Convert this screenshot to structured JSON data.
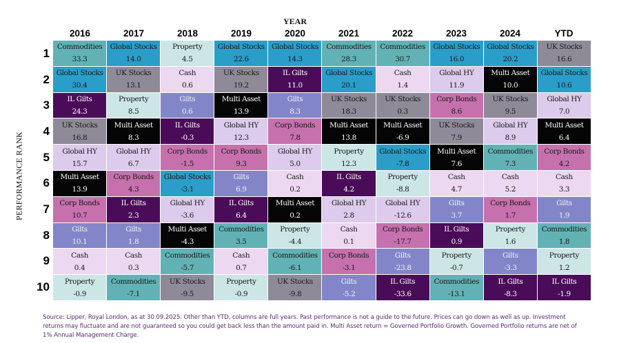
{
  "chart_data": {
    "type": "table",
    "title": "",
    "xlabel": "YEAR",
    "ylabel": "PERFORMANCE RANK",
    "columns": [
      "2016",
      "2017",
      "2018",
      "2019",
      "2020",
      "2021",
      "2022",
      "2023",
      "2024",
      "YTD"
    ],
    "ranks": [
      "1",
      "2",
      "3",
      "4",
      "5",
      "6",
      "7",
      "8",
      "9",
      "10"
    ],
    "asset_colors": {
      "Commodities": {
        "bg": "#62b2b5",
        "fg": "#1a1a1a"
      },
      "Global Stocks": {
        "bg": "#2b9dc9",
        "fg": "#1a1a1a"
      },
      "Property": {
        "bg": "#cce6e6",
        "fg": "#1a1a1a"
      },
      "UK Stocks": {
        "bg": "#8e8a97",
        "fg": "#1a1a1a"
      },
      "Cash": {
        "bg": "#ecd8f1",
        "fg": "#1a1a1a"
      },
      "IL Gilts": {
        "bg": "#4a0c58",
        "fg": "#ffffff"
      },
      "Gilts": {
        "bg": "#8286c9",
        "fg": "#f2f2f2"
      },
      "Multi Asset": {
        "bg": "#050505",
        "fg": "#ffffff"
      },
      "Global HY": {
        "bg": "#dccbec",
        "fg": "#1a1a1a"
      },
      "Corp Bonds": {
        "bg": "#c671ad",
        "fg": "#1a1a1a"
      }
    },
    "rows": [
      [
        [
          "Commodities",
          "33.3"
        ],
        [
          "Global Stocks",
          "14.0"
        ],
        [
          "Property",
          "4.5"
        ],
        [
          "Global Stocks",
          "22.6"
        ],
        [
          "Global Stocks",
          "14.3"
        ],
        [
          "Commodities",
          "28.3"
        ],
        [
          "Commodities",
          "30.7"
        ],
        [
          "Global Stocks",
          "16.0"
        ],
        [
          "Global Stocks",
          "20.2"
        ],
        [
          "UK Stocks",
          "16.6"
        ]
      ],
      [
        [
          "Global Stocks",
          "30.4"
        ],
        [
          "UK Stocks",
          "13.1"
        ],
        [
          "Cash",
          "0.6"
        ],
        [
          "UK Stocks",
          "19.2"
        ],
        [
          "IL Gilts",
          "11.0"
        ],
        [
          "Global Stocks",
          "20.1"
        ],
        [
          "Cash",
          "1.4"
        ],
        [
          "Global HY",
          "11.9"
        ],
        [
          "Multi Asset",
          "10.0"
        ],
        [
          "Global Stocks",
          "10.6"
        ]
      ],
      [
        [
          "IL Gilts",
          "24.3"
        ],
        [
          "Property",
          "8.5"
        ],
        [
          "Gilts",
          "0.6"
        ],
        [
          "Multi Asset",
          "13.9"
        ],
        [
          "Gilts",
          "8.3"
        ],
        [
          "UK Stocks",
          "18.3"
        ],
        [
          "UK Stocks",
          "0.3"
        ],
        [
          "Corp Bonds",
          "8.6"
        ],
        [
          "UK Stocks",
          "9.5"
        ],
        [
          "Global HY",
          "7.0"
        ]
      ],
      [
        [
          "UK Stocks",
          "16.8"
        ],
        [
          "Multi Asset",
          "8.3"
        ],
        [
          "IL Gilts",
          "-0.3"
        ],
        [
          "Global HY",
          "12.3"
        ],
        [
          "Corp Bonds",
          "7.8"
        ],
        [
          "Multi Asset",
          "13.8"
        ],
        [
          "Multi Asset",
          "-6.9"
        ],
        [
          "UK Stocks",
          "7.9"
        ],
        [
          "Global HY",
          "8.9"
        ],
        [
          "Multi Asset",
          "6.4"
        ]
      ],
      [
        [
          "Global HY",
          "15.7"
        ],
        [
          "Global HY",
          "6.7"
        ],
        [
          "Corp Bonds",
          "-1.5"
        ],
        [
          "Corp Bonds",
          "9.3"
        ],
        [
          "Global HY",
          "5.0"
        ],
        [
          "Property",
          "12.3"
        ],
        [
          "Global Stocks",
          "-7.8"
        ],
        [
          "Multi Asset",
          "7.6"
        ],
        [
          "Commodities",
          "7.3"
        ],
        [
          "Corp Bonds",
          "4.2"
        ]
      ],
      [
        [
          "Multi Asset",
          "13.9"
        ],
        [
          "Corp Bonds",
          "4.3"
        ],
        [
          "Global Stocks",
          "-3.1"
        ],
        [
          "Gilts",
          "6.9"
        ],
        [
          "Cash",
          "0.2"
        ],
        [
          "IL Gilts",
          "4.2"
        ],
        [
          "Property",
          "-8.8"
        ],
        [
          "Cash",
          "4.7"
        ],
        [
          "Cash",
          "5.2"
        ],
        [
          "Cash",
          "3.3"
        ]
      ],
      [
        [
          "Corp Bonds",
          "10.7"
        ],
        [
          "IL Gilts",
          "2.3"
        ],
        [
          "Global HY",
          "-3.6"
        ],
        [
          "IL Gilts",
          "6.4"
        ],
        [
          "Multi Asset",
          "0.2"
        ],
        [
          "Global HY",
          "2.8"
        ],
        [
          "Global HY",
          "-12.6"
        ],
        [
          "Gilts",
          "3.7"
        ],
        [
          "Corp Bonds",
          "1.7"
        ],
        [
          "Gilts",
          "1.9"
        ]
      ],
      [
        [
          "Gilts",
          "10.1"
        ],
        [
          "Gilts",
          "1.8"
        ],
        [
          "Multi Asset",
          "-4.3"
        ],
        [
          "Commodities",
          "3.5"
        ],
        [
          "Property",
          "-4.4"
        ],
        [
          "Cash",
          "0.1"
        ],
        [
          "Corp Bonds",
          "-17.7"
        ],
        [
          "IL Gilts",
          "0.9"
        ],
        [
          "Property",
          "1.6"
        ],
        [
          "Commodities",
          "1.8"
        ]
      ],
      [
        [
          "Cash",
          "0.4"
        ],
        [
          "Cash",
          "0.3"
        ],
        [
          "Commodities",
          "-5.7"
        ],
        [
          "Cash",
          "0.7"
        ],
        [
          "Commodities",
          "-6.1"
        ],
        [
          "Corp Bonds",
          "-3.1"
        ],
        [
          "Gilts",
          "-23.8"
        ],
        [
          "Property",
          "-0.7"
        ],
        [
          "Gilts",
          "-3.3"
        ],
        [
          "Property",
          "1.2"
        ]
      ],
      [
        [
          "Property",
          "-0.9"
        ],
        [
          "Commodities",
          "-7.1"
        ],
        [
          "UK Stocks",
          "-9.5"
        ],
        [
          "Property",
          "-0.9"
        ],
        [
          "UK Stocks",
          "-9.8"
        ],
        [
          "Gilts",
          "-5.2"
        ],
        [
          "IL Gilts",
          "-33.6"
        ],
        [
          "Commodities",
          "-13.1"
        ],
        [
          "IL Gilts",
          "-8.3"
        ],
        [
          "IL Gilts",
          "-1.9"
        ]
      ]
    ],
    "footnote": "Source: Lipper, Royal London, as at 30.09.2025. Other than YTD, columns are full years. Past performance is not a guide to the future. Prices can go down as well as up. Investment returns may fluctuate and are not guaranteed so you could get back less than the amount paid in.  Multi Asset return = Governed Portfolio Growth.  Governed Portfolio returns are net of 1% Annual Management Charge."
  }
}
